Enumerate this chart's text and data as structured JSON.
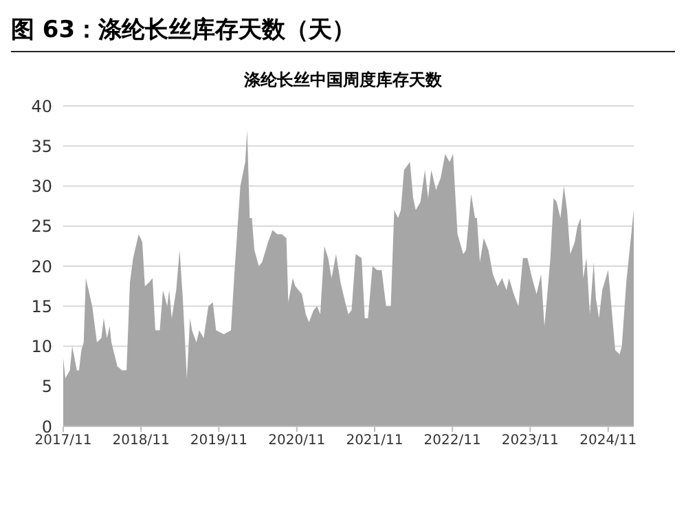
{
  "chart_data": {
    "type": "area",
    "title": "图 63：涤纶长丝库存天数（天）",
    "subtitle": "涤纶长丝中国周度库存天数",
    "x": [
      "2017-11-01",
      "2017-11-11",
      "2017-12-02",
      "2017-12-13",
      "2018-01-04",
      "2018-01-14",
      "2018-01-25",
      "2018-02-05",
      "2018-02-15",
      "2018-03-17",
      "2018-04-08",
      "2018-04-29",
      "2018-05-10",
      "2018-05-25",
      "2018-06-07",
      "2018-06-15",
      "2018-07-13",
      "2018-08-04",
      "2018-08-25",
      "2018-09-10",
      "2018-09-25",
      "2018-10-21",
      "2018-11-07",
      "2018-11-19",
      "2018-12-10",
      "2018-12-25",
      "2019-01-07",
      "2019-01-28",
      "2019-02-12",
      "2019-03-04",
      "2019-03-13",
      "2019-03-25",
      "2019-04-15",
      "2019-05-01",
      "2019-05-16",
      "2019-06-04",
      "2019-06-19",
      "2019-06-28",
      "2019-07-19",
      "2019-08-01",
      "2019-08-22",
      "2019-09-13",
      "2019-10-04",
      "2019-10-19",
      "2019-11-25",
      "2019-12-28",
      "2020-01-13",
      "2020-02-10",
      "2020-03-04",
      "2020-03-13",
      "2020-03-25",
      "2020-04-04",
      "2020-04-16",
      "2020-05-07",
      "2020-05-22",
      "2020-06-19",
      "2020-07-10",
      "2020-08-01",
      "2020-08-22",
      "2020-09-13",
      "2020-09-22",
      "2020-10-13",
      "2020-10-25",
      "2020-11-25",
      "2020-12-13",
      "2020-12-28",
      "2021-01-19",
      "2021-02-04",
      "2021-02-19",
      "2021-03-10",
      "2021-03-28",
      "2021-04-13",
      "2021-05-04",
      "2021-05-25",
      "2021-06-16",
      "2021-07-01",
      "2021-07-16",
      "2021-08-04",
      "2021-09-01",
      "2021-09-16",
      "2021-10-01",
      "2021-10-22",
      "2021-11-13",
      "2021-12-04",
      "2021-12-25",
      "2022-01-16",
      "2022-02-01",
      "2022-02-19",
      "2022-03-04",
      "2022-03-19",
      "2022-04-16",
      "2022-05-01",
      "2022-05-13",
      "2022-06-04",
      "2022-06-25",
      "2022-07-10",
      "2022-07-25",
      "2022-08-16",
      "2022-09-07",
      "2022-09-28",
      "2022-10-19",
      "2022-11-04",
      "2022-11-25",
      "2022-12-22",
      "2023-01-04",
      "2023-01-28",
      "2023-02-15",
      "2023-02-24",
      "2023-03-10",
      "2023-03-28",
      "2023-04-19",
      "2023-05-10",
      "2023-06-01",
      "2023-06-22",
      "2023-07-13",
      "2023-07-25",
      "2023-08-16",
      "2023-09-07",
      "2023-09-28",
      "2023-10-19",
      "2023-11-10",
      "2023-12-01",
      "2023-12-22",
      "2024-01-07",
      "2024-02-04",
      "2024-02-19",
      "2024-03-04",
      "2024-03-22",
      "2024-04-07",
      "2024-04-22",
      "2024-05-07",
      "2024-05-28",
      "2024-06-10",
      "2024-06-25",
      "2024-07-07",
      "2024-07-22",
      "2024-08-07",
      "2024-08-25",
      "2024-09-04",
      "2024-09-19",
      "2024-10-04",
      "2024-11-01",
      "2024-11-16",
      "2024-12-04",
      "2024-12-25",
      "2025-01-04",
      "2025-01-25",
      "2025-03-01"
    ],
    "series": [
      {
        "color": "#a6a6a6",
        "values": [
          8.5,
          6,
          7,
          10,
          7,
          7,
          9.5,
          10.5,
          18.5,
          15,
          10.5,
          11,
          13.5,
          11,
          12.5,
          10.5,
          7.5,
          7,
          7,
          18,
          21,
          24,
          23,
          17.5,
          18,
          18.5,
          12,
          12,
          17,
          15,
          17,
          13.5,
          17,
          22,
          16,
          6,
          13.5,
          12,
          10.5,
          12,
          11,
          15,
          15.5,
          12,
          11.5,
          12,
          19,
          30,
          33,
          37,
          26,
          26,
          22,
          20,
          20.5,
          23,
          24.5,
          24,
          24,
          23.5,
          15.5,
          18.5,
          17.5,
          16.5,
          14,
          13,
          14.5,
          15,
          14,
          22.5,
          21,
          18.5,
          21.5,
          18,
          15.5,
          14,
          14.5,
          21.5,
          21,
          13.5,
          13.5,
          20,
          19.5,
          19.5,
          15,
          15,
          27,
          26,
          27,
          32,
          33,
          28.5,
          27,
          28,
          32,
          28.5,
          32,
          29.5,
          31,
          34,
          33,
          34,
          24,
          21.5,
          22,
          29,
          26,
          26,
          20.5,
          23.5,
          22,
          19,
          17.5,
          18.5,
          17,
          18.5,
          16.5,
          15,
          21,
          21,
          18.5,
          16.5,
          19,
          12.5,
          21,
          28.5,
          28,
          26,
          30,
          27,
          21.5,
          23,
          25,
          26,
          18.5,
          21,
          14,
          20.5,
          16,
          13.5,
          17,
          19.5,
          15,
          9.5,
          9,
          10,
          18,
          27
        ]
      }
    ],
    "xlim": [
      "2017-11-01",
      "2025-03-01"
    ],
    "xticks": [
      {
        "value": "2017-11-01",
        "label": "2017/11"
      },
      {
        "value": "2018-11-01",
        "label": "2018/11"
      },
      {
        "value": "2019-11-01",
        "label": "2019/11"
      },
      {
        "value": "2020-11-01",
        "label": "2020/11"
      },
      {
        "value": "2021-11-01",
        "label": "2021/11"
      },
      {
        "value": "2022-11-01",
        "label": "2022/11"
      },
      {
        "value": "2023-11-01",
        "label": "2023/11"
      },
      {
        "value": "2024-11-01",
        "label": "2024/11"
      }
    ],
    "ylim": [
      0,
      40
    ],
    "yticks": [
      0,
      5,
      10,
      15,
      20,
      25,
      30,
      35,
      40
    ],
    "grid": "y",
    "legend": false
  }
}
